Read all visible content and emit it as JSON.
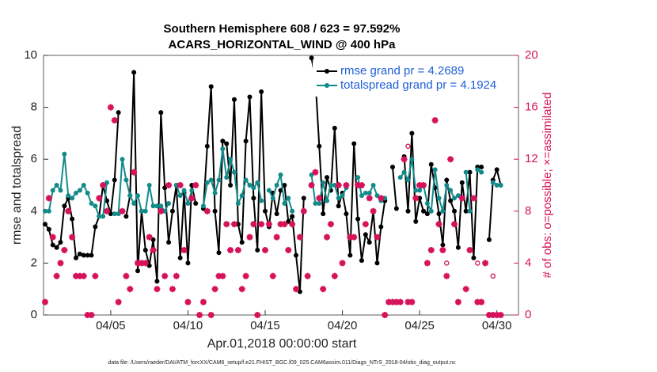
{
  "chart_data": {
    "type": "line",
    "title": "Southern Hemisphere 608 / 623 = 97.592%",
    "subtitle": "ACARS_HORIZONTAL_WIND @ 400 hPa",
    "xlabel": "Apr.01,2018 00:00:00 start",
    "ylabel": "rmse and totalspread",
    "y2label": "# of obs: o=possible; ×=assimilated",
    "footnote": "data file: /Users/raeder/DAI/ATM_forcXX/CAM6_setup/f.e21.FHIST_BGC.f09_025.CAM6assim.011/Diags_NTrS_2018-04/obs_diag_output.nc",
    "xlim": [
      0.65,
      31.4
    ],
    "xticks": [
      {
        "value": 5,
        "label": "04/05"
      },
      {
        "value": 10,
        "label": "04/10"
      },
      {
        "value": 15,
        "label": "04/15"
      },
      {
        "value": 20,
        "label": "04/20"
      },
      {
        "value": 25,
        "label": "04/25"
      },
      {
        "value": 30,
        "label": "04/30"
      }
    ],
    "ylim": [
      0,
      10
    ],
    "yticks": [
      0,
      2,
      4,
      6,
      8,
      10
    ],
    "y2lim": [
      0,
      20
    ],
    "y2ticks": [
      0,
      4,
      8,
      12,
      16,
      20
    ],
    "grid": false,
    "legend": "upper right",
    "x": [
      0.75,
      1,
      1.25,
      1.5,
      1.75,
      2,
      2.25,
      2.5,
      2.75,
      3,
      3.25,
      3.5,
      3.75,
      4,
      4.25,
      4.5,
      4.75,
      5,
      5.25,
      5.5,
      5.75,
      6,
      6.25,
      6.5,
      6.75,
      7,
      7.25,
      7.5,
      7.75,
      8,
      8.25,
      8.5,
      8.75,
      9,
      9.25,
      9.5,
      9.75,
      10,
      10.25,
      10.5,
      10.75,
      11,
      11.25,
      11.5,
      11.75,
      12,
      12.25,
      12.5,
      12.75,
      13,
      13.25,
      13.5,
      13.75,
      14,
      14.25,
      14.5,
      14.75,
      15,
      15.25,
      15.5,
      15.75,
      16,
      16.25,
      16.5,
      16.75,
      17,
      17.25,
      17.5,
      17.75,
      18,
      18.25,
      18.5,
      18.75,
      19,
      19.25,
      19.5,
      19.75,
      20,
      20.25,
      20.5,
      20.75,
      21,
      21.25,
      21.5,
      21.75,
      22,
      22.25,
      22.5,
      22.75,
      23,
      23.25,
      23.5,
      23.75,
      24,
      24.25,
      24.5,
      24.75,
      25,
      25.25,
      25.5,
      25.75,
      26,
      26.25,
      26.5,
      26.75,
      27,
      27.25,
      27.5,
      27.75,
      28,
      28.25,
      28.5,
      28.75,
      29,
      29.25,
      29.5,
      29.75,
      30,
      30.25
    ],
    "series": [
      {
        "name": "rmse grand pr = 4.2689",
        "color": "#000000",
        "marker": "circle",
        "values": [
          3.5,
          3.3,
          2.7,
          2.6,
          2.8,
          4.2,
          4.5,
          3.7,
          2.2,
          2.35,
          2.3,
          2.3,
          2.3,
          3.4,
          3.8,
          5.0,
          4.4,
          3.9,
          5.2,
          7.8,
          null,
          3.8,
          4.6,
          9.35,
          1.7,
          4.0,
          2.5,
          1.9,
          2.9,
          1.3,
          7.8,
          4.9,
          2.8,
          4.0,
          5.0,
          2.2,
          4.7,
          2.0,
          5.0,
          4.3,
          null,
          4.1,
          6.5,
          8.8,
          4.0,
          2.4,
          6.7,
          6.6,
          5.0,
          8.3,
          3.5,
          2.8,
          6.7,
          8.4,
          4.5,
          2.5,
          8.6,
          4.0,
          3.4,
          4.7,
          3.9,
          4.8,
          5.0,
          3.6,
          3.8,
          2.3,
          0.9,
          4.5,
          null,
          9.9,
          9.1,
          6.5,
          3.9,
          5.3,
          4.8,
          7.2,
          4.2,
          4.7,
          3.9,
          2.3,
          6.6,
          3.7,
          2.1,
          3.1,
          2.8,
          4.0,
          2.0,
          3.4,
          4.4,
          null,
          5.7,
          4.1,
          null,
          6.1,
          4.0,
          7.0,
          3.6,
          4.5,
          4.0,
          3.9,
          5.8,
          4.9,
          3.9,
          2.7,
          5.2,
          4.4,
          4.0,
          2.6,
          5.1,
          4.0,
          5.5,
          2.2,
          5.7,
          5.7,
          null,
          2.9,
          5.2,
          5.6,
          5.0
        ]
      },
      {
        "name": "totalspread grand pr = 4.1924",
        "color": "#138a8a",
        "marker": "circle",
        "values": [
          4.0,
          4.0,
          4.8,
          5.0,
          4.8,
          6.2,
          4.6,
          4.5,
          4.7,
          4.8,
          5.0,
          4.7,
          4.3,
          4.2,
          3.8,
          3.8,
          5.1,
          null,
          3.9,
          3.9,
          6.0,
          5.2,
          4.6,
          4.3,
          4.6,
          4.0,
          4.0,
          5.0,
          4.2,
          4.2,
          4.2,
          4.0,
          4.3,
          null,
          5.0,
          4.6,
          4.8,
          4.3,
          4.8,
          null,
          null,
          4.2,
          5.1,
          5.2,
          4.7,
          5.2,
          6.4,
          5.3,
          6.0,
          5.5,
          4.3,
          4.6,
          5.2,
          5.0,
          4.9,
          5.1,
          4.4,
          null,
          4.8,
          4.5,
          5.0,
          5.4,
          4.3,
          4.5,
          4.0,
          null,
          null,
          null,
          null,
          5.4,
          4.3,
          4.3,
          5.1,
          4.4,
          5.0,
          5.0,
          4.5,
          4.6,
          4.9,
          null,
          null,
          5.3,
          4.6,
          4.7,
          4.7,
          5.0,
          4.6,
          4.4,
          4.5,
          null,
          null,
          null,
          5.3,
          5.5,
          5.2,
          6.0,
          4.8,
          4.8,
          5.0,
          4.3,
          4.0,
          5.6,
          4.5,
          4.0,
          5.0,
          4.8,
          4.5,
          4.6,
          null,
          5.5,
          4.0,
          null,
          5.6,
          5.5,
          null,
          null,
          5.1,
          5.0,
          5.0
        ]
      },
      {
        "color": "#d6125a",
        "marker": "o",
        "axis": "y2",
        "values": [
          1,
          9,
          6,
          3,
          4,
          5,
          8,
          6,
          3,
          3,
          3,
          0,
          0,
          3,
          9,
          10,
          8,
          16,
          15,
          1,
          8,
          3,
          2,
          11,
          4,
          4,
          4,
          6,
          5,
          2,
          8,
          3,
          10,
          2,
          3,
          10,
          5,
          1,
          9,
          10,
          0,
          1,
          8,
          0,
          2,
          3,
          3,
          7,
          5,
          7,
          5,
          2,
          3,
          6,
          7,
          0,
          7,
          5,
          7,
          3,
          6,
          7,
          7,
          5,
          7,
          2,
          6,
          8,
          3,
          10,
          11,
          9,
          2,
          6,
          7,
          3,
          10,
          4,
          10,
          6,
          6,
          10,
          10,
          7,
          9,
          8,
          6,
          9,
          0,
          1,
          1,
          1,
          1,
          12,
          13,
          1,
          9,
          10,
          10,
          4,
          5,
          15,
          7,
          5,
          4,
          12,
          7,
          1,
          9,
          2,
          5,
          9,
          4,
          1,
          4,
          0,
          3,
          0,
          0
        ]
      },
      {
        "color": "#d6125a",
        "marker": "star",
        "axis": "y2",
        "values": [
          1,
          9,
          6,
          3,
          4,
          5,
          8,
          6,
          3,
          3,
          3,
          0,
          0,
          3,
          9,
          10,
          8,
          16,
          15,
          1,
          8,
          3,
          2,
          11,
          4,
          4,
          4,
          6,
          5,
          2,
          8,
          3,
          10,
          2,
          3,
          10,
          5,
          1,
          9,
          10,
          0,
          1,
          8,
          0,
          2,
          3,
          3,
          7,
          5,
          7,
          5,
          2,
          3,
          6,
          7,
          0,
          7,
          5,
          7,
          3,
          6,
          7,
          7,
          5,
          7,
          2,
          6,
          8,
          3,
          10,
          11,
          9,
          2,
          6,
          7,
          3,
          10,
          4,
          10,
          6,
          6,
          10,
          10,
          7,
          9,
          8,
          6,
          9,
          0,
          1,
          1,
          1,
          1,
          12,
          1,
          1,
          9,
          10,
          10,
          4,
          5,
          15,
          7,
          5,
          3,
          12,
          7,
          1,
          9,
          2,
          5,
          9,
          1,
          1,
          4,
          0,
          0,
          0,
          0
        ]
      }
    ]
  }
}
